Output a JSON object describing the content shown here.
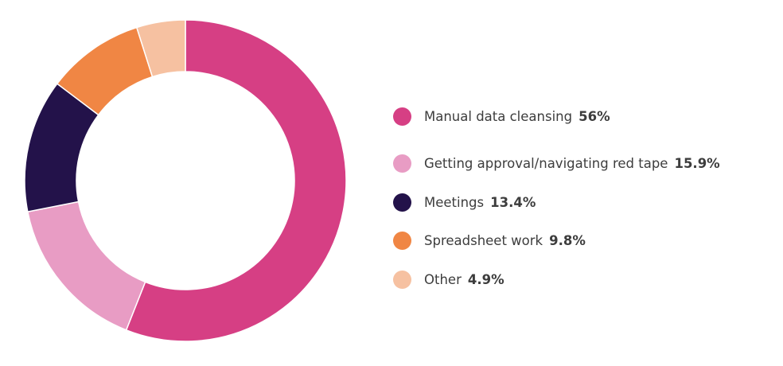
{
  "chart_data": {
    "type": "pie",
    "variant": "donut",
    "title": "",
    "slices": [
      {
        "label": "Manual data cleansing",
        "value": 56,
        "value_label": "56%",
        "color": "#D63F84"
      },
      {
        "label": "Getting approval/navigating red tape",
        "value": 15.9,
        "value_label": "15.9%",
        "color": "#E89CC4"
      },
      {
        "label": "Meetings",
        "value": 13.4,
        "value_label": "13.4%",
        "color": "#23124A"
      },
      {
        "label": "Spreadsheet work",
        "value": 9.8,
        "value_label": "9.8%",
        "color": "#F08644"
      },
      {
        "label": "Other",
        "value": 4.9,
        "value_label": "4.9%",
        "color": "#F6C1A1"
      }
    ],
    "legend_position": "right"
  }
}
